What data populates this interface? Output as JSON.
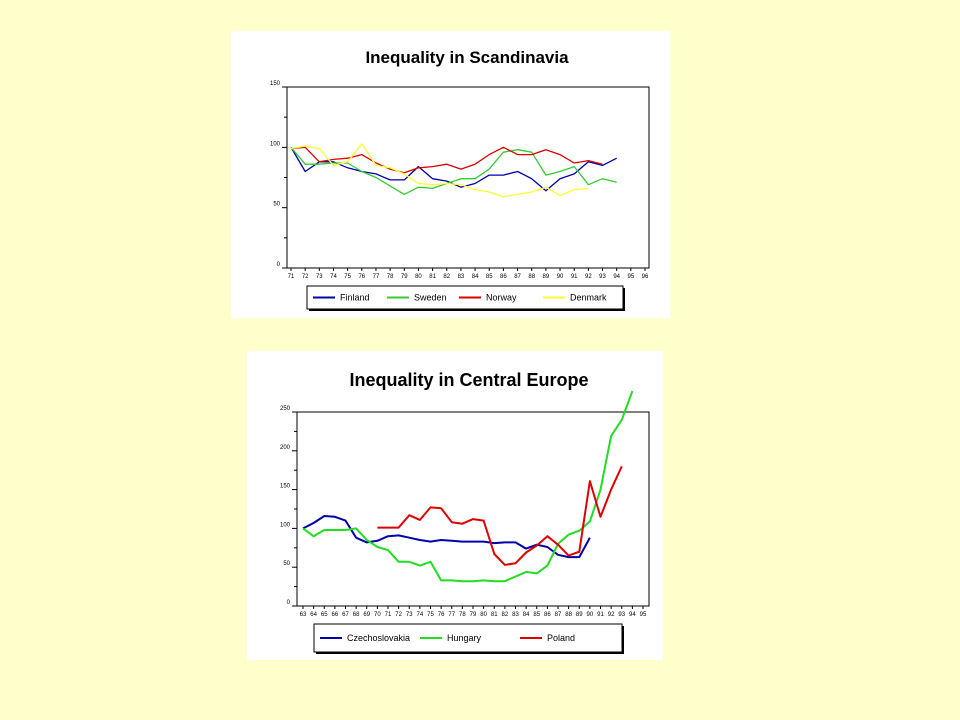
{
  "chart_data": [
    {
      "type": "line",
      "title": "Inequality in Scandinavia",
      "xlabel": "",
      "ylabel": "",
      "categories": [
        "71",
        "72",
        "73",
        "74",
        "75",
        "76",
        "77",
        "78",
        "79",
        "80",
        "81",
        "82",
        "83",
        "84",
        "85",
        "86",
        "87",
        "88",
        "89",
        "90",
        "91",
        "92",
        "93",
        "94",
        "95",
        "96"
      ],
      "ylim": [
        0,
        150
      ],
      "yticks": [
        0,
        50,
        100,
        150
      ],
      "grid": false,
      "legend": "bottom",
      "series": [
        {
          "name": "Finland",
          "color": "#0000aa",
          "values": [
            100,
            80,
            88,
            88,
            83,
            80,
            78,
            73,
            73,
            84,
            74,
            72,
            67,
            70,
            77,
            77,
            80,
            74,
            64,
            74,
            78,
            88,
            85,
            91,
            null,
            null
          ]
        },
        {
          "name": "Sweden",
          "color": "#33cc33",
          "values": [
            100,
            86,
            86,
            87,
            87,
            80,
            75,
            68,
            61,
            67,
            66,
            70,
            74,
            74,
            82,
            96,
            98,
            96,
            77,
            80,
            84,
            69,
            74,
            71,
            null,
            null
          ]
        },
        {
          "name": "Norway",
          "color": "#dd0000",
          "values": [
            99,
            100,
            88,
            90,
            91,
            94,
            87,
            82,
            79,
            83,
            84,
            86,
            82,
            86,
            94,
            100,
            94,
            94,
            98,
            94,
            87,
            89,
            86,
            null,
            null,
            null
          ]
        },
        {
          "name": "Denmark",
          "color": "#ffff33",
          "values": [
            99,
            101,
            99,
            85,
            88,
            103,
            85,
            83,
            78,
            70,
            69,
            70,
            69,
            65,
            63,
            59,
            61,
            63,
            67,
            60,
            65,
            66,
            null,
            null,
            null,
            null
          ]
        }
      ]
    },
    {
      "type": "line",
      "title": "Inequality in Central Europe",
      "xlabel": "",
      "ylabel": "",
      "categories": [
        "63",
        "64",
        "65",
        "66",
        "67",
        "68",
        "69",
        "70",
        "71",
        "72",
        "73",
        "74",
        "75",
        "76",
        "77",
        "78",
        "79",
        "80",
        "81",
        "82",
        "83",
        "84",
        "85",
        "86",
        "87",
        "88",
        "89",
        "90",
        "91",
        "92",
        "93",
        "94",
        "95"
      ],
      "ylim": [
        0,
        250
      ],
      "yticks": [
        0,
        50,
        100,
        150,
        200,
        250
      ],
      "grid": false,
      "legend": "bottom",
      "series": [
        {
          "name": "Czechoslovakia",
          "color": "#0000aa",
          "values": [
            100,
            107,
            116,
            115,
            110,
            88,
            82,
            84,
            90,
            91,
            88,
            85,
            83,
            85,
            84,
            83,
            83,
            83,
            81,
            82,
            82,
            74,
            79,
            76,
            66,
            63,
            63,
            88,
            null,
            null,
            null,
            null,
            null
          ]
        },
        {
          "name": "Hungary",
          "color": "#22dd22",
          "values": [
            100,
            90,
            98,
            98,
            98,
            100,
            85,
            76,
            72,
            57,
            57,
            52,
            57,
            33,
            33,
            32,
            32,
            33,
            32,
            32,
            38,
            44,
            42,
            52,
            80,
            92,
            97,
            109,
            150,
            219,
            240,
            277,
            null
          ]
        },
        {
          "name": "Poland",
          "color": "#dd0000",
          "values": [
            null,
            null,
            null,
            null,
            null,
            null,
            null,
            101,
            101,
            101,
            117,
            111,
            127,
            126,
            108,
            106,
            112,
            110,
            67,
            53,
            55,
            69,
            78,
            90,
            79,
            65,
            70,
            161,
            115,
            150,
            180,
            null,
            null
          ]
        }
      ]
    }
  ]
}
